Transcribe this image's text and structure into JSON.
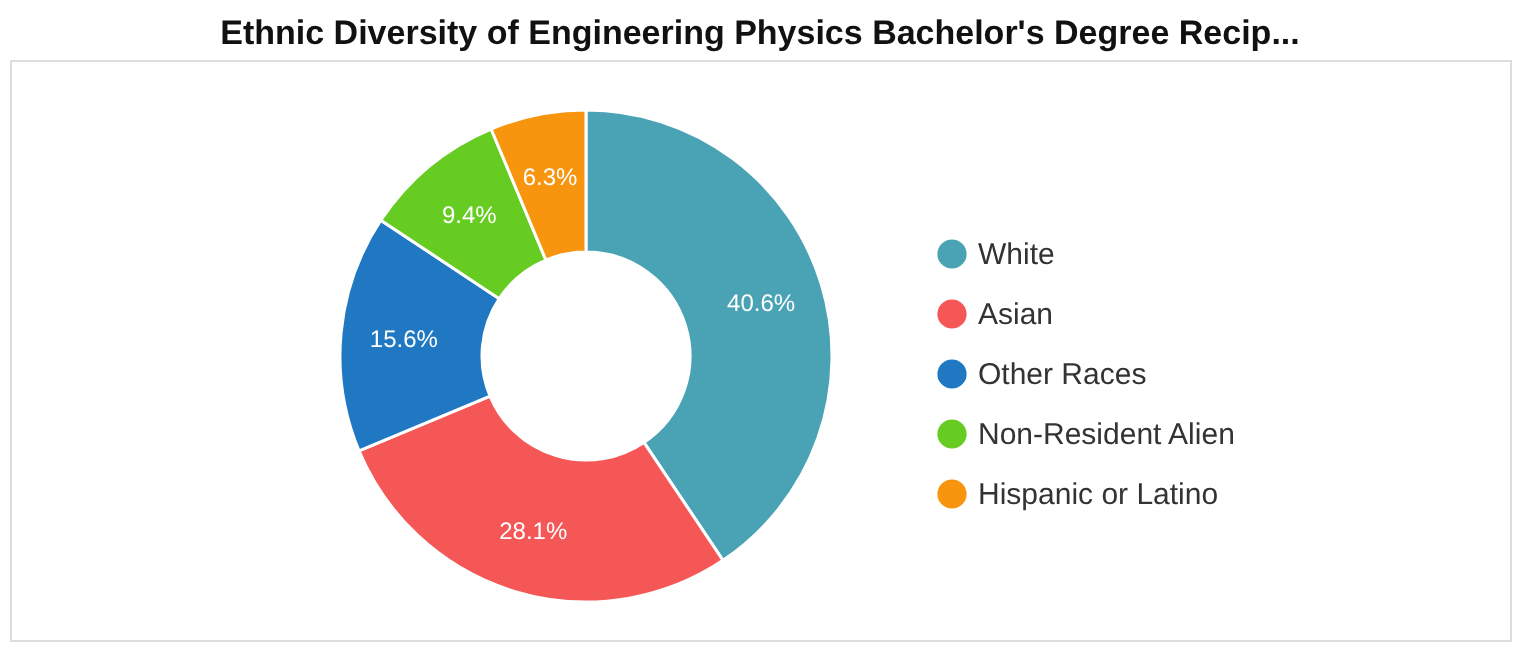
{
  "chart_data": {
    "type": "donut",
    "title": "Ethnic Diversity of Engineering Physics Bachelor's Degree Recip...",
    "categories": [
      "White",
      "Asian",
      "Other Races",
      "Non-Resident Alien",
      "Hispanic or Latino"
    ],
    "values": [
      40.6,
      28.1,
      15.6,
      9.4,
      6.3
    ],
    "colors": [
      "#4aa3b5",
      "#f55656",
      "#1f78c1",
      "#66cc22",
      "#f7950f"
    ],
    "value_labels": [
      "40.6%",
      "28.1%",
      "15.6%",
      "9.4%",
      "6.3%"
    ],
    "legend": "right"
  }
}
